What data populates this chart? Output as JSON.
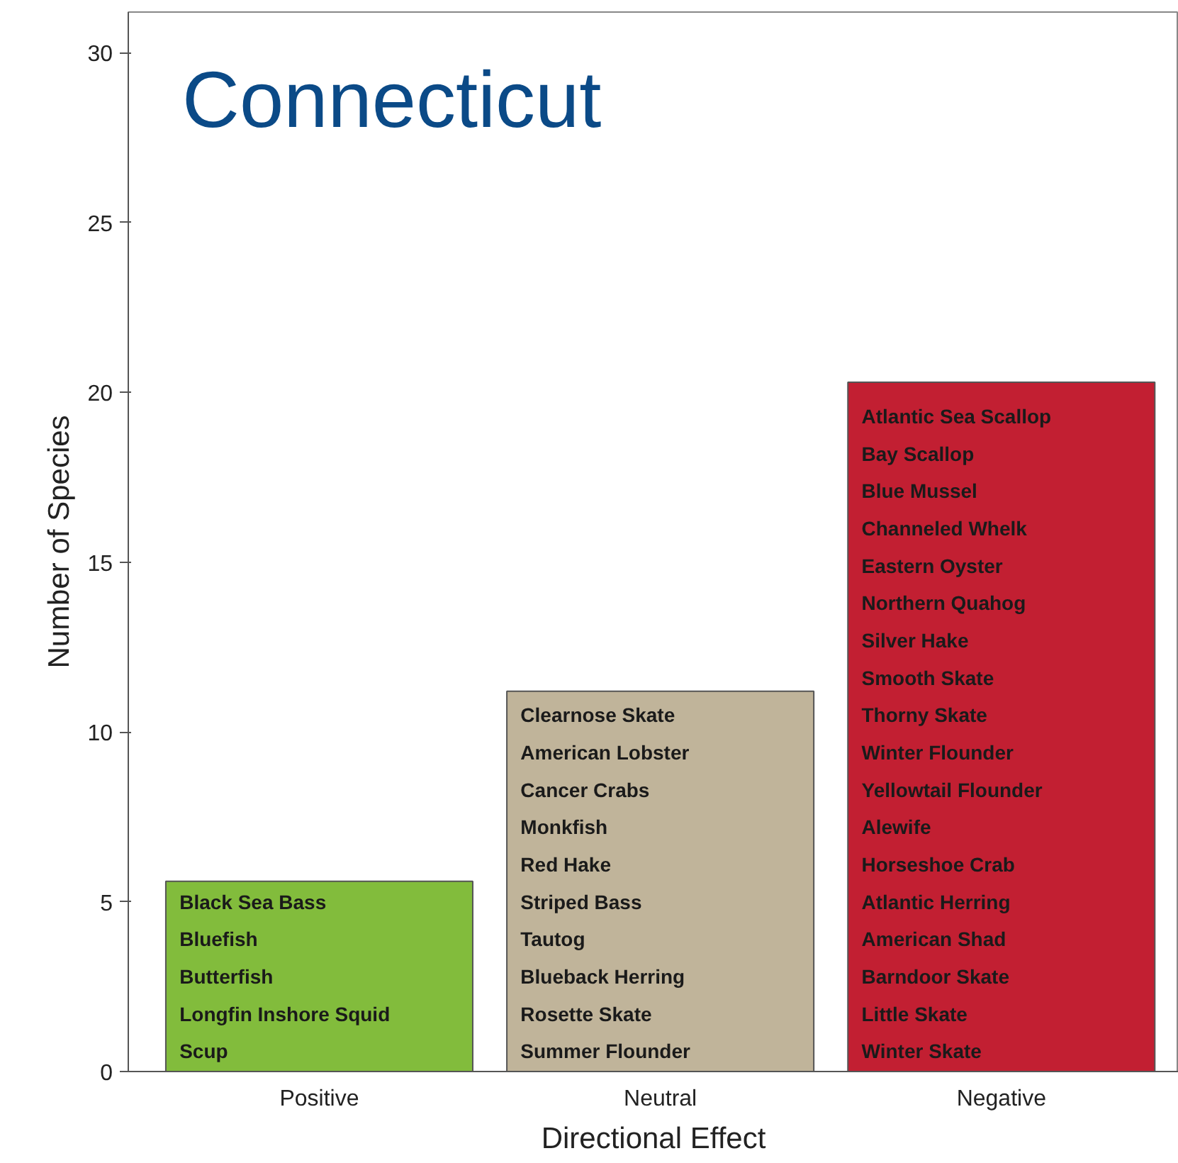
{
  "chart_data": {
    "type": "bar",
    "title": "Connecticut",
    "xlabel": "Directional Effect",
    "ylabel": "Number of Species",
    "categories": [
      "Positive",
      "Neutral",
      "Negative"
    ],
    "values": [
      5.6,
      11.2,
      20.3
    ],
    "colors": [
      "#82bc3c",
      "#c0b49a",
      "#c21f32"
    ],
    "ylim": [
      0,
      31.2
    ],
    "yticks": [
      0,
      5,
      10,
      15,
      20,
      25,
      30
    ],
    "grid": false,
    "annotations": [
      "Black Sea Bass",
      "Bluefish",
      "Butterfish",
      "Longfin Inshore Squid",
      "Scup",
      "Clearnose Skate",
      "American Lobster",
      "Cancer Crabs",
      "Monkfish",
      "Red Hake",
      "Striped Bass",
      "Tautog",
      "Blueback Herring",
      "Rosette Skate",
      "Summer Flounder",
      "Atlantic Sea Scallop",
      "Bay Scallop",
      "Blue Mussel",
      "Channeled Whelk",
      "Eastern Oyster",
      "Northern Quahog",
      "Silver Hake",
      "Smooth Skate",
      "Thorny Skate",
      "Winter Flounder",
      "Yellowtail Flounder",
      "Alewife",
      "Horseshoe Crab",
      "Atlantic Herring",
      "American Shad",
      "Barndoor Skate",
      "Little Skate",
      "Winter Skate"
    ]
  }
}
